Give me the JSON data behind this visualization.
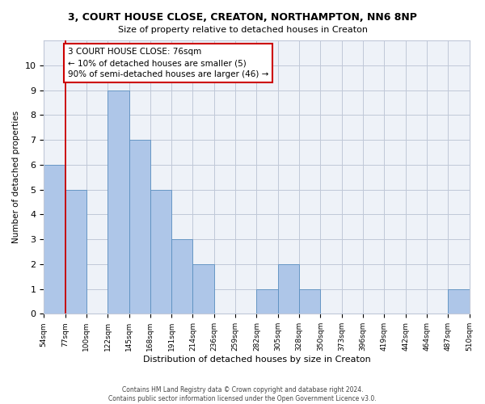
{
  "title": "3, COURT HOUSE CLOSE, CREATON, NORTHAMPTON, NN6 8NP",
  "subtitle": "Size of property relative to detached houses in Creaton",
  "xlabel": "Distribution of detached houses by size in Creaton",
  "ylabel": "Number of detached properties",
  "bar_values": [
    6,
    5,
    0,
    9,
    7,
    5,
    3,
    2,
    0,
    0,
    1,
    2,
    1,
    0,
    0,
    0,
    0,
    0,
    0,
    1
  ],
  "categories": [
    "54sqm",
    "77sqm",
    "100sqm",
    "122sqm",
    "145sqm",
    "168sqm",
    "191sqm",
    "214sqm",
    "236sqm",
    "259sqm",
    "282sqm",
    "305sqm",
    "328sqm",
    "350sqm",
    "373sqm",
    "396sqm",
    "419sqm",
    "442sqm",
    "464sqm",
    "487sqm",
    "510sqm"
  ],
  "bar_color": "#aec6e8",
  "bar_edge_color": "#5a8fc0",
  "property_line_x": 0.5,
  "annotation_text": "3 COURT HOUSE CLOSE: 76sqm\n← 10% of detached houses are smaller (5)\n90% of semi-detached houses are larger (46) →",
  "annotation_box_color": "#ffffff",
  "annotation_box_edge": "#cc0000",
  "red_line_color": "#cc0000",
  "ylim": [
    0,
    11
  ],
  "yticks": [
    0,
    1,
    2,
    3,
    4,
    5,
    6,
    7,
    8,
    9,
    10,
    11
  ],
  "footer_line1": "Contains HM Land Registry data © Crown copyright and database right 2024.",
  "footer_line2": "Contains public sector information licensed under the Open Government Licence v3.0.",
  "background_color": "#eef2f8",
  "grid_color": "#c0c8d8",
  "title_fontsize": 9,
  "subtitle_fontsize": 8.5
}
